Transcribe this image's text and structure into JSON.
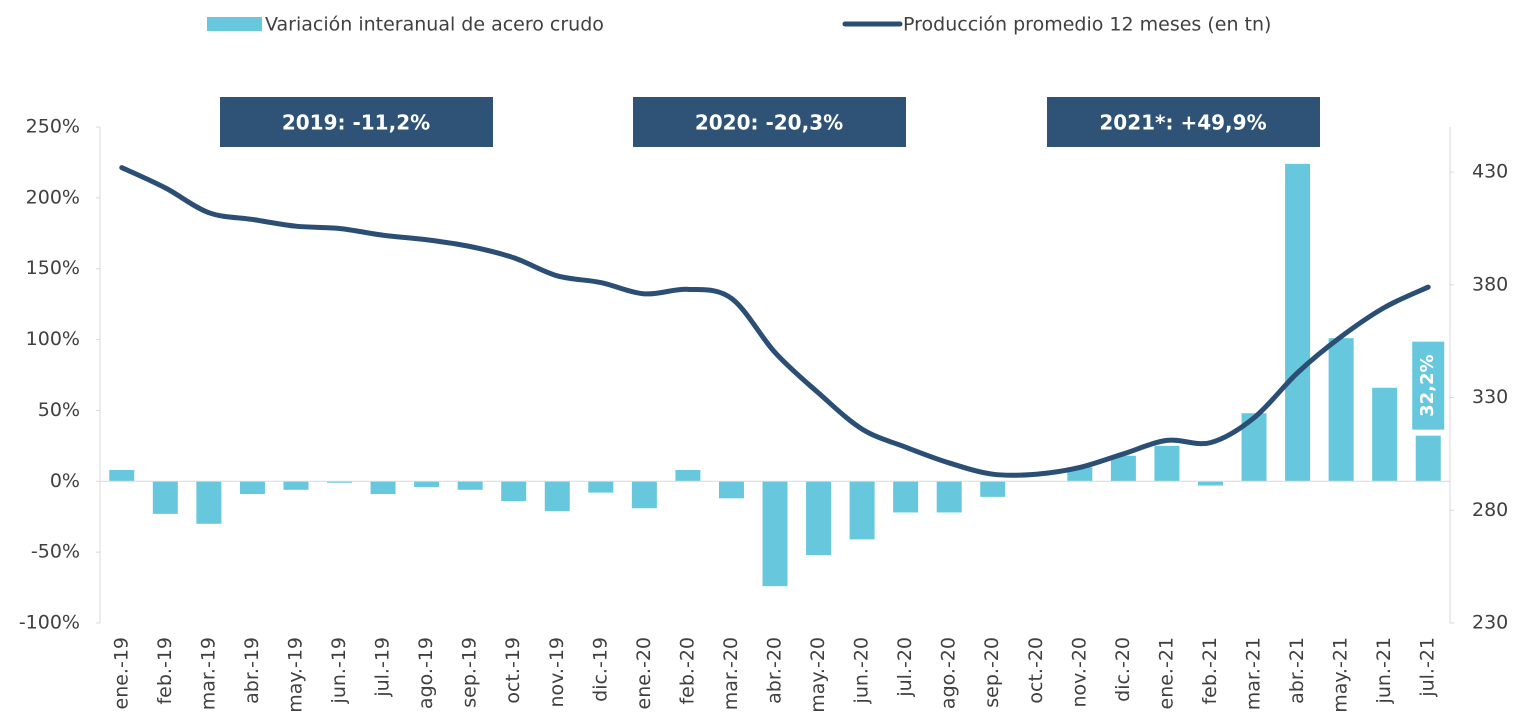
{
  "chart_data": {
    "type": "bar_line",
    "categories": [
      "ene.-19",
      "feb.-19",
      "mar.-19",
      "abr.-19",
      "may.-19",
      "jun.-19",
      "jul.-19",
      "ago.-19",
      "sep.-19",
      "oct.-19",
      "nov.-19",
      "dic.-19",
      "ene.-20",
      "feb.-20",
      "mar.-20",
      "abr.-20",
      "may.-20",
      "jun.-20",
      "jul.-20",
      "ago.-20",
      "sep.-20",
      "oct.-20",
      "nov.-20",
      "dic.-20",
      "ene.-21",
      "feb.-21",
      "mar.-21",
      "abr.-21",
      "may.-21",
      "jun.-21",
      "jul.-21"
    ],
    "series": [
      {
        "name": "Variación interanual de acero crudo",
        "type": "bar",
        "color": "#67c7dc",
        "axis": "y",
        "values": [
          8,
          -23,
          -30,
          -9,
          -6,
          -1,
          -9,
          -4,
          -6,
          -14,
          -21,
          -8,
          -19,
          8,
          -12,
          -74,
          -52,
          -41,
          -22,
          -22,
          -11,
          0,
          10,
          18,
          25,
          -3,
          48,
          224,
          101,
          66,
          32.2
        ],
        "value_labels": [
          null,
          null,
          null,
          null,
          null,
          null,
          null,
          null,
          null,
          null,
          null,
          null,
          null,
          null,
          null,
          null,
          null,
          null,
          null,
          null,
          null,
          null,
          null,
          null,
          null,
          null,
          null,
          null,
          null,
          null,
          "32,2%"
        ]
      },
      {
        "name": "Producción promedio 12 meses (en tn)",
        "type": "line",
        "color": "#2b4e75",
        "axis": "y2",
        "values": [
          432,
          423,
          412,
          409,
          406,
          405,
          402,
          400,
          397,
          392,
          384,
          381,
          376,
          378,
          374,
          350,
          332,
          316,
          308,
          301,
          296,
          296,
          299,
          305,
          311,
          310,
          321,
          341,
          357,
          370,
          379
        ]
      }
    ],
    "ylim": [
      -100,
      250
    ],
    "yticks": [
      {
        "value": -100,
        "label": "-100%"
      },
      {
        "value": -50,
        "label": "-50%"
      },
      {
        "value": 0,
        "label": "0%"
      },
      {
        "value": 50,
        "label": "50%"
      },
      {
        "value": 100,
        "label": "100%"
      },
      {
        "value": 150,
        "label": "150%"
      },
      {
        "value": 200,
        "label": "200%"
      },
      {
        "value": 250,
        "label": "250%"
      }
    ],
    "y2lim": [
      230,
      450
    ],
    "y2ticks": [
      230,
      280,
      330,
      380,
      430
    ],
    "annotations": [
      "2019: -11,2%",
      "2020: -20,3%",
      "2021*: +49,9%"
    ],
    "annotation_color": "#2e5377",
    "legend": "top"
  }
}
